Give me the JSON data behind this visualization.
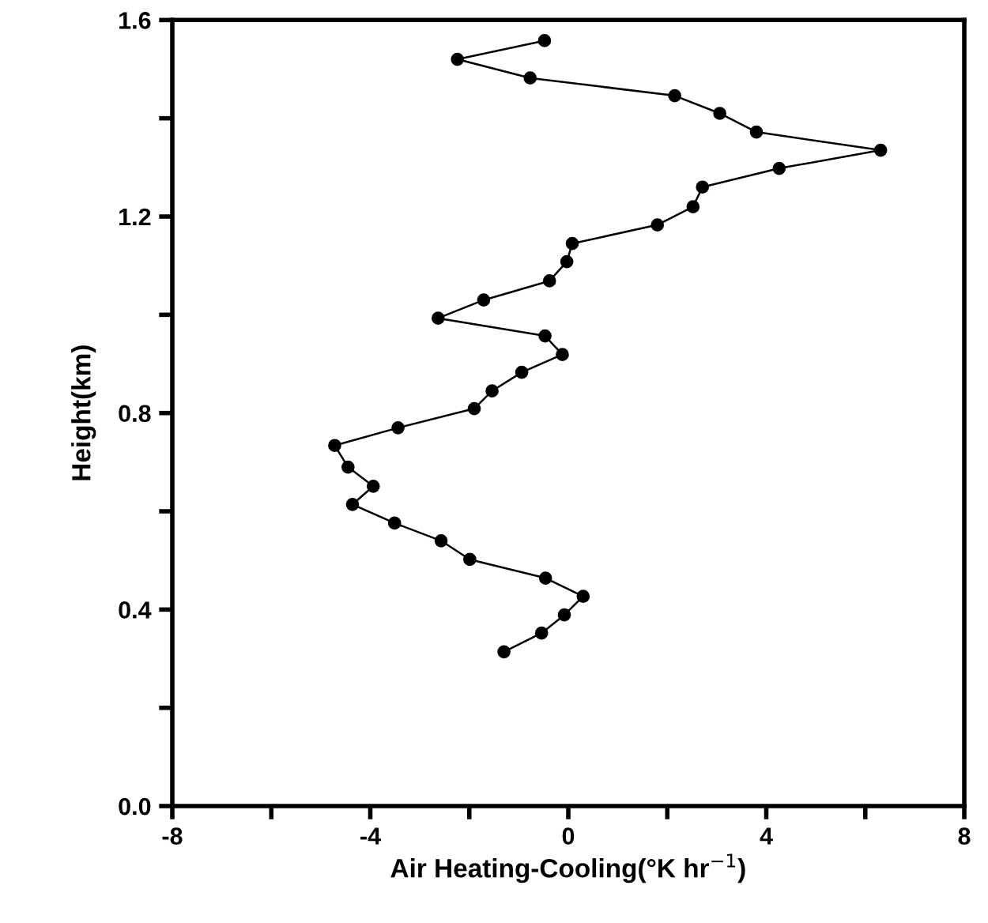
{
  "chart_data": {
    "type": "line",
    "xlabel": "Air Heating-Cooling(°K hr$^{−1}$)",
    "ylabel": "Height(km)",
    "xlim": [
      -8,
      8
    ],
    "xticks": [
      -8,
      {
        "value": -6,
        "label": null
      },
      -4,
      {
        "value": -2,
        "label": null
      },
      0,
      {
        "value": 2,
        "label": null
      },
      4,
      {
        "value": 6,
        "label": null
      },
      8
    ],
    "ylim": [
      0,
      1.6
    ],
    "yticks": [
      {
        "value": 0,
        "label": "0.0"
      },
      {
        "value": 0.2,
        "label": null
      },
      0.4,
      {
        "value": 0.6,
        "label": null
      },
      0.8,
      {
        "value": 1.0,
        "label": null
      },
      1.2,
      {
        "value": 1.4,
        "label": null
      },
      1.6
    ],
    "marker": "circle",
    "line_style": "solid",
    "grid": false,
    "legend": false,
    "series": [
      {
        "color": "#000000",
        "x": [
          -0.48,
          -2.24,
          -0.77,
          2.15,
          3.06,
          3.8,
          6.31,
          4.26,
          2.71,
          2.52,
          1.8,
          0.08,
          -0.03,
          -0.38,
          -1.71,
          -2.63,
          -0.47,
          -0.12,
          -0.94,
          -1.54,
          -1.9,
          -3.44,
          -4.72,
          -4.45,
          -3.94,
          -4.36,
          -3.51,
          -2.57,
          -1.99,
          -0.46,
          0.3,
          -0.08,
          -0.54,
          -1.3
        ],
        "values": [
          1.558,
          1.52,
          1.482,
          1.446,
          1.41,
          1.372,
          1.335,
          1.298,
          1.26,
          1.22,
          1.183,
          1.145,
          1.108,
          1.069,
          1.03,
          0.993,
          0.957,
          0.919,
          0.883,
          0.845,
          0.809,
          0.77,
          0.734,
          0.69,
          0.651,
          0.614,
          0.576,
          0.54,
          0.502,
          0.464,
          0.427,
          0.389,
          0.352,
          0.314
        ]
      }
    ]
  }
}
